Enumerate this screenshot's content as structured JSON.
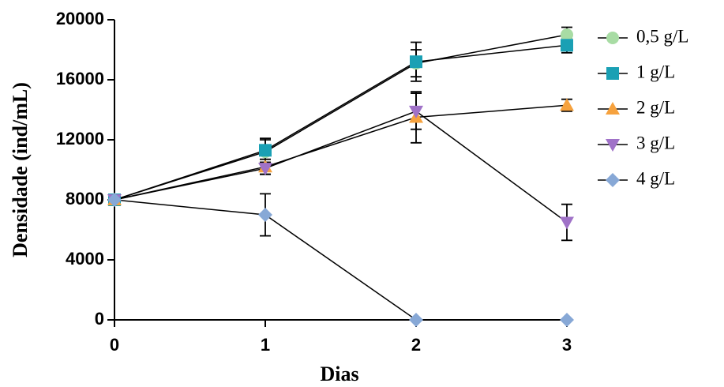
{
  "chart_data": {
    "type": "line",
    "xlabel": "Dias",
    "ylabel": "Densidade (ind/mL)",
    "x": [
      0,
      1,
      2,
      3
    ],
    "xlim": [
      0,
      3
    ],
    "xticks": [
      0,
      1,
      2,
      3
    ],
    "ylim": [
      0,
      20000
    ],
    "yticks": [
      0,
      4000,
      8000,
      12000,
      16000,
      20000
    ],
    "series": [
      {
        "name": "0,5 g/L",
        "color": "#a8dca4",
        "marker": "circle",
        "values": [
          8000,
          11200,
          17100,
          19000
        ],
        "errors": [
          0,
          800,
          900,
          500
        ]
      },
      {
        "name": "1 g/L",
        "color": "#1aa0b4",
        "marker": "square",
        "values": [
          8000,
          11300,
          17200,
          18300
        ],
        "errors": [
          0,
          800,
          1300,
          500
        ]
      },
      {
        "name": "2 g/L",
        "color": "#f6a23e",
        "marker": "triangle-up",
        "values": [
          8000,
          10200,
          13500,
          14300
        ],
        "errors": [
          0,
          500,
          1700,
          400
        ]
      },
      {
        "name": "3 g/L",
        "color": "#a072c8",
        "marker": "triangle-down",
        "values": [
          8000,
          10100,
          13900,
          6500
        ],
        "errors": [
          0,
          400,
          1200,
          1200
        ]
      },
      {
        "name": "4 g/L",
        "color": "#87a8d6",
        "marker": "diamond",
        "values": [
          8000,
          7000,
          0,
          0
        ],
        "errors": [
          0,
          1400,
          0,
          0
        ]
      }
    ]
  }
}
